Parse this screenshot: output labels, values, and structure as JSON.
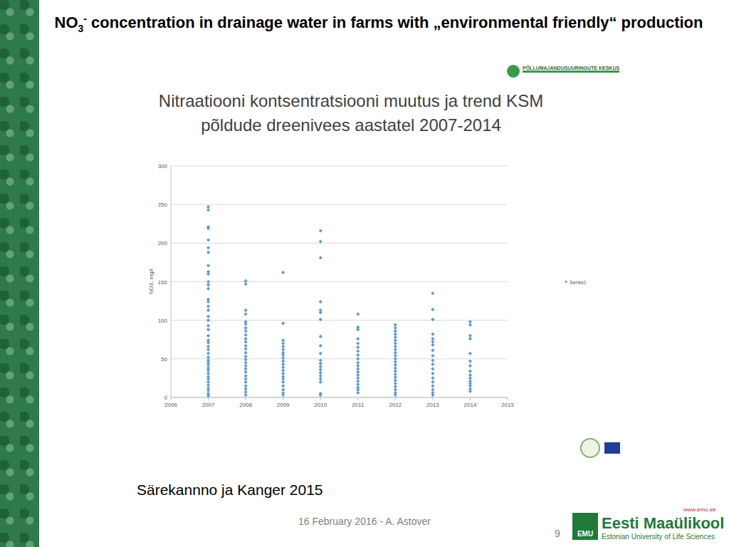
{
  "slide": {
    "title": {
      "chem": "NO",
      "sub": "3",
      "sup": "-",
      "text": " concentration in drainage water in farms with „environmental friendly“ production"
    },
    "logo_text": "PÕLLUMAJANDUSUURINGUTE KESKUS",
    "citation": "Särekannno ja Kanger 2015",
    "footer": "16 February 2016 - A. Astover",
    "page": "9",
    "url": "www.emu.ee",
    "university": "Eesti Maaülikool",
    "university_en": "Estonian University of Life Sciences",
    "university_short": "EMU"
  },
  "chart_data": {
    "type": "scatter",
    "title": "Nitraatiooni kontsentratsiooni muutus ja trend KSM\npõldude dreenivees aastatel 2007-2014",
    "y_label": "NO3, mg/l",
    "xlim": [
      2006,
      2015
    ],
    "xticks": [
      2006,
      2007,
      2008,
      2009,
      2010,
      2011,
      2012,
      2013,
      2014,
      2015
    ],
    "ylim": [
      0,
      300
    ],
    "yticks": [
      0,
      50,
      100,
      150,
      200,
      250,
      300
    ],
    "grid": true,
    "legend": "right",
    "series": [
      {
        "name": "Series1",
        "color": "#5b9bd5",
        "marker": "diamond",
        "x": [
          2007,
          2007,
          2007,
          2007,
          2007,
          2007,
          2007,
          2007,
          2007,
          2007,
          2007,
          2007,
          2007,
          2007,
          2007,
          2007,
          2007,
          2007,
          2007,
          2007,
          2007,
          2007,
          2007,
          2007,
          2007,
          2007,
          2007,
          2007,
          2007,
          2007,
          2007,
          2007,
          2007,
          2007,
          2007,
          2007,
          2007,
          2007,
          2007,
          2007,
          2007,
          2007,
          2008,
          2008,
          2008,
          2008,
          2008,
          2008,
          2008,
          2008,
          2008,
          2008,
          2008,
          2008,
          2008,
          2008,
          2008,
          2008,
          2008,
          2008,
          2008,
          2008,
          2008,
          2008,
          2008,
          2008,
          2008,
          2008,
          2008,
          2009,
          2009,
          2009,
          2009,
          2009,
          2009,
          2009,
          2009,
          2009,
          2009,
          2009,
          2009,
          2009,
          2009,
          2009,
          2009,
          2009,
          2009,
          2009,
          2009,
          2009,
          2010,
          2010,
          2010,
          2010,
          2010,
          2010,
          2010,
          2010,
          2010,
          2010,
          2010,
          2010,
          2010,
          2010,
          2010,
          2010,
          2010,
          2010,
          2010,
          2010,
          2011,
          2011,
          2011,
          2011,
          2011,
          2011,
          2011,
          2011,
          2011,
          2011,
          2011,
          2011,
          2011,
          2011,
          2011,
          2011,
          2011,
          2011,
          2011,
          2011,
          2012,
          2012,
          2012,
          2012,
          2012,
          2012,
          2012,
          2012,
          2012,
          2012,
          2012,
          2012,
          2012,
          2012,
          2012,
          2012,
          2012,
          2012,
          2012,
          2012,
          2012,
          2012,
          2012,
          2012,
          2013,
          2013,
          2013,
          2013,
          2013,
          2013,
          2013,
          2013,
          2013,
          2013,
          2013,
          2013,
          2013,
          2013,
          2013,
          2013,
          2013,
          2013,
          2013,
          2014,
          2014,
          2014,
          2014,
          2014,
          2014,
          2014,
          2014,
          2014,
          2014,
          2014,
          2014,
          2014,
          2014,
          2014
        ],
        "values": [
          247,
          243,
          221,
          219,
          204,
          194,
          188,
          171,
          163,
          160,
          150,
          146,
          141,
          127,
          124,
          118,
          113,
          105,
          100,
          93,
          88,
          80,
          74,
          71,
          66,
          62,
          57,
          52,
          48,
          45,
          42,
          38,
          35,
          31,
          27,
          24,
          20,
          16,
          12,
          9,
          5,
          2,
          151,
          147,
          113,
          108,
          98,
          95,
          90,
          86,
          81,
          76,
          72,
          67,
          63,
          58,
          53,
          49,
          45,
          41,
          37,
          33,
          28,
          24,
          20,
          15,
          11,
          7,
          3,
          162,
          96,
          74,
          70,
          66,
          62,
          58,
          55,
          51,
          47,
          43,
          39,
          35,
          31,
          27,
          24,
          20,
          15,
          10,
          6,
          3,
          216,
          202,
          181,
          124,
          113,
          110,
          101,
          79,
          67,
          57,
          48,
          44,
          40,
          36,
          32,
          28,
          24,
          20,
          5,
          3,
          108,
          91,
          88,
          76,
          70,
          65,
          60,
          55,
          50,
          45,
          41,
          37,
          33,
          29,
          25,
          21,
          17,
          13,
          10,
          6,
          94,
          90,
          86,
          82,
          78,
          74,
          70,
          66,
          62,
          58,
          54,
          50,
          46,
          42,
          38,
          34,
          30,
          26,
          22,
          18,
          14,
          10,
          6,
          3,
          135,
          114,
          101,
          82,
          76,
          72,
          68,
          61,
          54,
          48,
          43,
          37,
          31,
          25,
          20,
          15,
          10,
          6,
          3,
          98,
          94,
          80,
          76,
          57,
          47,
          41,
          34,
          29,
          25,
          21,
          18,
          15,
          11,
          8
        ]
      }
    ]
  }
}
